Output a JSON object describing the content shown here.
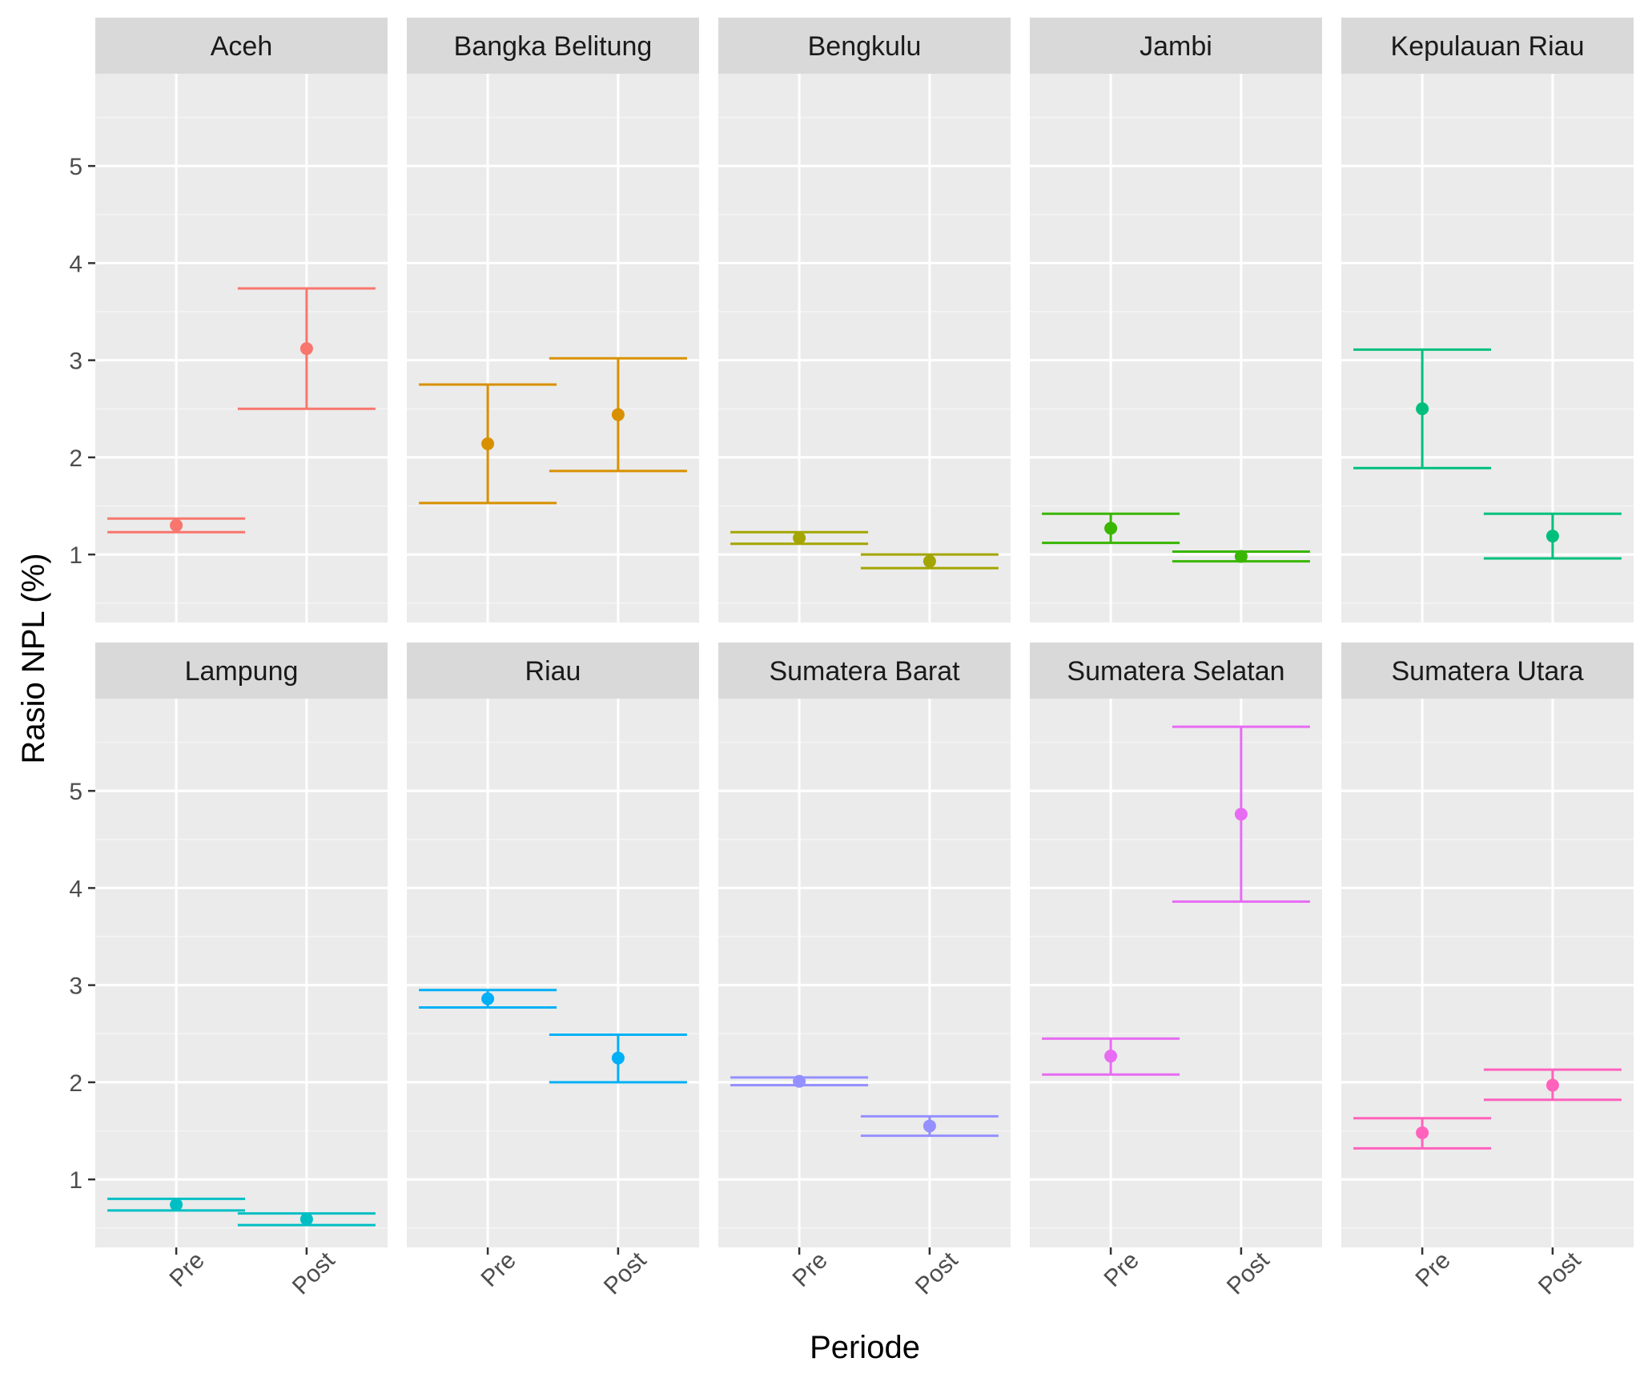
{
  "chart_data": {
    "type": "errorbar-facet",
    "xlabel": "Periode",
    "ylabel": "Rasio NPL (%)",
    "categories": [
      "Pre",
      "Post"
    ],
    "ylim": [
      0.3,
      5.95
    ],
    "yticks": [
      1,
      2,
      3,
      4,
      5
    ],
    "grid": true,
    "legend": "none",
    "panels": [
      {
        "name": "Aceh",
        "color": "#F8766D",
        "points": [
          {
            "x": "Pre",
            "mean": 1.3,
            "low": 1.23,
            "high": 1.37
          },
          {
            "x": "Post",
            "mean": 3.12,
            "low": 2.5,
            "high": 3.74
          }
        ]
      },
      {
        "name": "Bangka Belitung",
        "color": "#D89000",
        "points": [
          {
            "x": "Pre",
            "mean": 2.14,
            "low": 1.53,
            "high": 2.75
          },
          {
            "x": "Post",
            "mean": 2.44,
            "low": 1.86,
            "high": 3.02
          }
        ]
      },
      {
        "name": "Bengkulu",
        "color": "#A3A500",
        "points": [
          {
            "x": "Pre",
            "mean": 1.17,
            "low": 1.11,
            "high": 1.23
          },
          {
            "x": "Post",
            "mean": 0.93,
            "low": 0.86,
            "high": 1.0
          }
        ]
      },
      {
        "name": "Jambi",
        "color": "#39B600",
        "points": [
          {
            "x": "Pre",
            "mean": 1.27,
            "low": 1.12,
            "high": 1.42
          },
          {
            "x": "Post",
            "mean": 0.98,
            "low": 0.93,
            "high": 1.03
          }
        ]
      },
      {
        "name": "Kepulauan Riau",
        "color": "#00BF7D",
        "points": [
          {
            "x": "Pre",
            "mean": 2.5,
            "low": 1.89,
            "high": 3.11
          },
          {
            "x": "Post",
            "mean": 1.19,
            "low": 0.96,
            "high": 1.42
          }
        ]
      },
      {
        "name": "Lampung",
        "color": "#00BFC4",
        "points": [
          {
            "x": "Pre",
            "mean": 0.74,
            "low": 0.68,
            "high": 0.8
          },
          {
            "x": "Post",
            "mean": 0.59,
            "low": 0.53,
            "high": 0.65
          }
        ]
      },
      {
        "name": "Riau",
        "color": "#00B0F6",
        "points": [
          {
            "x": "Pre",
            "mean": 2.86,
            "low": 2.77,
            "high": 2.95
          },
          {
            "x": "Post",
            "mean": 2.25,
            "low": 2.0,
            "high": 2.49
          }
        ]
      },
      {
        "name": "Sumatera Barat",
        "color": "#9590FF",
        "points": [
          {
            "x": "Pre",
            "mean": 2.01,
            "low": 1.97,
            "high": 2.05
          },
          {
            "x": "Post",
            "mean": 1.55,
            "low": 1.45,
            "high": 1.65
          }
        ]
      },
      {
        "name": "Sumatera Selatan",
        "color": "#E76BF3",
        "points": [
          {
            "x": "Pre",
            "mean": 2.27,
            "low": 2.08,
            "high": 2.45
          },
          {
            "x": "Post",
            "mean": 4.76,
            "low": 3.86,
            "high": 5.66
          }
        ]
      },
      {
        "name": "Sumatera Utara",
        "color": "#FF62BC",
        "points": [
          {
            "x": "Pre",
            "mean": 1.48,
            "low": 1.32,
            "high": 1.63
          },
          {
            "x": "Post",
            "mean": 1.97,
            "low": 1.82,
            "high": 2.13
          }
        ]
      }
    ]
  }
}
